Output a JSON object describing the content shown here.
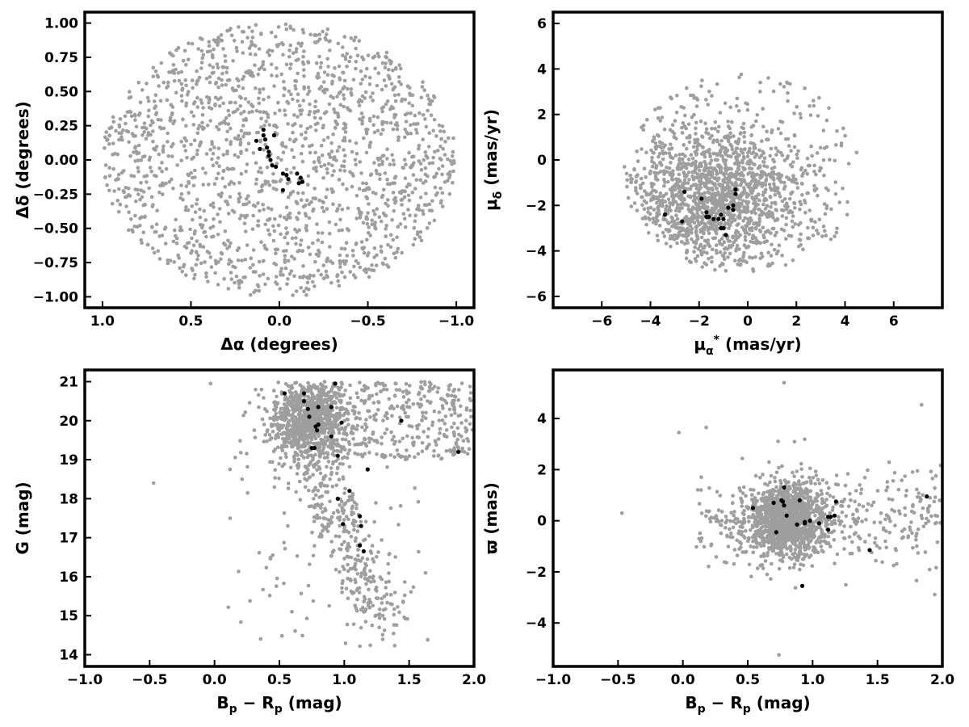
{
  "colors": {
    "background": "#ffffff",
    "field_stars": "#9e9e9e",
    "members": "#000000",
    "frame": "#000000"
  },
  "chart_data": [
    {
      "type": "scatter",
      "id": "sky",
      "xlabel": "Δα (degrees)",
      "ylabel": "Δδ (degrees)",
      "xlim": [
        1.1,
        -1.1
      ],
      "ylim": [
        -1.08,
        1.08
      ],
      "x_reversed": true,
      "xticks": [
        "1.0",
        "0.5",
        "0.0",
        "−0.5",
        "−1.0"
      ],
      "xtick_values": [
        1.0,
        0.5,
        0.0,
        -0.5,
        -1.0
      ],
      "yticks": [
        "−1.00",
        "−0.75",
        "−0.50",
        "−0.25",
        "0.00",
        "0.25",
        "0.50",
        "0.75",
        "1.00"
      ],
      "ytick_values": [
        -1.0,
        -0.75,
        -0.5,
        -0.25,
        0.0,
        0.25,
        0.5,
        0.75,
        1.0
      ],
      "grid": false,
      "field_distribution": {
        "shape": "uniform_disk",
        "center": [
          0.0,
          0.0
        ],
        "radius_x": 1.0,
        "radius_y": 1.0,
        "count": 1700
      },
      "members": [
        [
          0.13,
          0.14
        ],
        [
          0.09,
          0.22
        ],
        [
          0.09,
          0.18
        ],
        [
          0.08,
          0.15
        ],
        [
          0.11,
          0.08
        ],
        [
          0.07,
          0.09
        ],
        [
          0.06,
          0.06
        ],
        [
          0.06,
          0.03
        ],
        [
          0.05,
          0.0
        ],
        [
          0.04,
          -0.04
        ],
        [
          0.02,
          -0.05
        ],
        [
          0.03,
          0.18
        ],
        [
          -0.02,
          -0.1
        ],
        [
          -0.04,
          -0.11
        ],
        [
          -0.05,
          -0.14
        ],
        [
          -0.02,
          -0.22
        ],
        [
          -0.1,
          -0.1
        ],
        [
          -0.12,
          -0.13
        ],
        [
          -0.11,
          -0.17
        ],
        [
          -0.13,
          -0.16
        ]
      ]
    },
    {
      "type": "scatter",
      "id": "proper-motion",
      "xlabel": "μα* (mas/yr)",
      "ylabel": "μδ (mas/yr)",
      "xlim": [
        -8,
        8
      ],
      "ylim": [
        -6.5,
        6.5
      ],
      "xticks": [
        "−6",
        "−4",
        "−2",
        "0",
        "2",
        "4",
        "6"
      ],
      "xtick_values": [
        -6,
        -4,
        -2,
        0,
        2,
        4,
        6
      ],
      "yticks": [
        "−6",
        "−4",
        "−2",
        "0",
        "2",
        "4",
        "6"
      ],
      "ytick_values": [
        -6,
        -4,
        -2,
        0,
        2,
        4,
        6
      ],
      "grid": false,
      "field_distribution": {
        "shape": "blob_in_ellipse",
        "center": [
          -1.3,
          -1.6
        ],
        "spread": [
          1.8,
          1.5
        ],
        "bounds": {
          "x": [
            -5,
            5
          ],
          "y": [
            -5,
            4.5
          ]
        },
        "count": 1700
      },
      "members": [
        [
          -2.6,
          -1.4
        ],
        [
          -3.4,
          -2.4
        ],
        [
          -2.7,
          -2.7
        ],
        [
          -1.9,
          -1.7
        ],
        [
          -1.7,
          -2.3
        ],
        [
          -1.7,
          -2.5
        ],
        [
          -1.6,
          -2.5
        ],
        [
          -1.4,
          -2.6
        ],
        [
          -1.1,
          -2.4
        ],
        [
          -1.2,
          -2.6
        ],
        [
          -1.0,
          -2.6
        ],
        [
          -1.1,
          -3.0
        ],
        [
          -1.0,
          -3.0
        ],
        [
          -0.9,
          -3.3
        ],
        [
          -0.8,
          -2.1
        ],
        [
          -0.6,
          -2.0
        ],
        [
          -0.6,
          -2.2
        ],
        [
          -0.5,
          -1.3
        ],
        [
          -0.5,
          -1.5
        ]
      ]
    },
    {
      "type": "scatter",
      "id": "cmd",
      "xlabel": "Bp − Rp (mag)",
      "ylabel": "G (mag)",
      "xlim": [
        -1.0,
        2.0
      ],
      "ylim": [
        13.7,
        21.3
      ],
      "xticks": [
        "−1.0",
        "−0.5",
        "0.0",
        "0.5",
        "1.0",
        "1.5",
        "2.0"
      ],
      "xtick_values": [
        -1.0,
        -0.5,
        0.0,
        0.5,
        1.0,
        1.5,
        2.0
      ],
      "yticks": [
        "14",
        "15",
        "16",
        "17",
        "18",
        "19",
        "20",
        "21"
      ],
      "ytick_values": [
        14,
        15,
        16,
        17,
        18,
        19,
        20,
        21
      ],
      "grid": false,
      "field_distribution": {
        "shape": "cmd_sequence",
        "count": 1700
      },
      "members": [
        [
          0.54,
          20.7
        ],
        [
          0.69,
          20.7
        ],
        [
          0.69,
          20.5
        ],
        [
          0.72,
          20.3
        ],
        [
          0.73,
          20.1
        ],
        [
          0.93,
          20.95
        ],
        [
          0.9,
          20.35
        ],
        [
          0.8,
          20.35
        ],
        [
          0.8,
          19.9
        ],
        [
          0.78,
          19.85
        ],
        [
          0.79,
          19.75
        ],
        [
          0.98,
          19.95
        ],
        [
          0.9,
          19.6
        ],
        [
          0.75,
          19.3
        ],
        [
          0.77,
          19.3
        ],
        [
          0.95,
          19.1
        ],
        [
          1.18,
          18.75
        ],
        [
          1.04,
          18.2
        ],
        [
          0.95,
          18.0
        ],
        [
          0.99,
          17.35
        ],
        [
          1.12,
          17.55
        ],
        [
          1.13,
          17.3
        ],
        [
          1.12,
          16.8
        ],
        [
          1.15,
          16.65
        ],
        [
          1.44,
          20.0
        ],
        [
          1.88,
          19.2
        ]
      ]
    },
    {
      "type": "scatter",
      "id": "parallax",
      "xlabel": "Bp − Rp (mag)",
      "ylabel": "ϖ (mas)",
      "xlim": [
        -1.0,
        2.0
      ],
      "ylim": [
        -5.7,
        5.9
      ],
      "xticks": [
        "−1.0",
        "−0.5",
        "0.0",
        "0.5",
        "1.0",
        "1.5",
        "2.0"
      ],
      "xtick_values": [
        -1.0,
        -0.5,
        0.0,
        0.5,
        1.0,
        1.5,
        2.0
      ],
      "yticks": [
        "−4",
        "−2",
        "0",
        "2",
        "4"
      ],
      "ytick_values": [
        -4,
        -2,
        0,
        2,
        4
      ],
      "grid": false,
      "field_distribution": {
        "shape": "blob",
        "center": [
          0.8,
          0.0
        ],
        "count": 1700
      },
      "members": [
        [
          0.54,
          0.5
        ],
        [
          0.7,
          0.7
        ],
        [
          0.72,
          -0.45
        ],
        [
          0.76,
          0.8
        ],
        [
          0.77,
          0.75
        ],
        [
          0.78,
          0.6
        ],
        [
          0.78,
          1.3
        ],
        [
          0.8,
          0.2
        ],
        [
          0.88,
          -0.15
        ],
        [
          0.9,
          0.8
        ],
        [
          0.92,
          -2.55
        ],
        [
          0.94,
          -0.1
        ],
        [
          0.94,
          -0.05
        ],
        [
          0.98,
          0.0
        ],
        [
          1.05,
          -0.1
        ],
        [
          1.12,
          -0.35
        ],
        [
          1.12,
          0.15
        ],
        [
          1.14,
          0.15
        ],
        [
          1.17,
          0.2
        ],
        [
          1.18,
          0.75
        ],
        [
          1.44,
          -1.15
        ],
        [
          1.88,
          0.95
        ]
      ]
    }
  ]
}
